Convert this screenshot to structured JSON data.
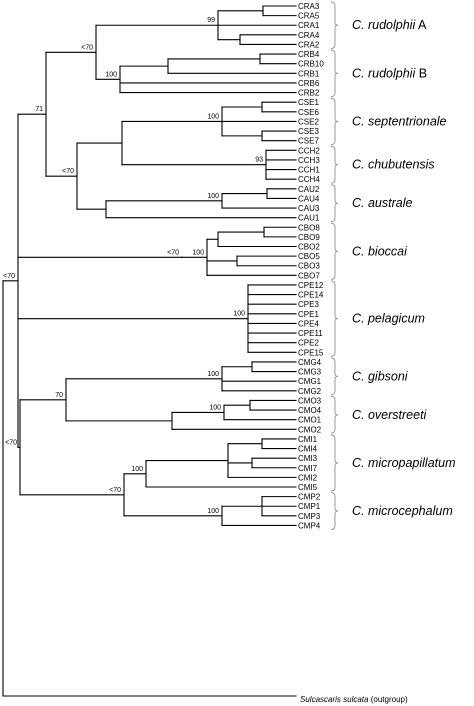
{
  "outgroup": {
    "genus": "Sulcascaris sulcata",
    "note": "(outgroup)"
  },
  "clades": [
    {
      "id": "rudolphiiA",
      "name": "C. rudolphii",
      "suffix": " A",
      "leaves": [
        "CRA3",
        "CRA5",
        "CRA1",
        "CRA4",
        "CRA2"
      ]
    },
    {
      "id": "rudolphiiB",
      "name": "C. rudolphii",
      "suffix": " B",
      "leaves": [
        "CRB4",
        "CRB10",
        "CRB1",
        "CRB6",
        "CRB2"
      ]
    },
    {
      "id": "septentrionale",
      "name": "C. septentrionale",
      "suffix": "",
      "leaves": [
        "CSE1",
        "CSE6",
        "CSE2",
        "CSE3",
        "CSE7"
      ]
    },
    {
      "id": "chubutensis",
      "name": "C. chubutensis",
      "suffix": "",
      "leaves": [
        "CCH2",
        "CCH3",
        "CCH1",
        "CCH4"
      ]
    },
    {
      "id": "australe",
      "name": "C. australe",
      "suffix": "",
      "leaves": [
        "CAU2",
        "CAU4",
        "CAU3",
        "CAU1"
      ]
    },
    {
      "id": "bioccai",
      "name": "C. bioccai",
      "suffix": "",
      "leaves": [
        "CBO8",
        "CBO9",
        "CBO2",
        "CBO5",
        "CBO3",
        "CBO7"
      ]
    },
    {
      "id": "pelagicum",
      "name": "C. pelagicum",
      "suffix": "",
      "leaves": [
        "CPE12",
        "CPE14",
        "CPE3",
        "CPE1",
        "CPE4",
        "CPE11",
        "CPE2",
        "CPE15"
      ]
    },
    {
      "id": "gibsoni",
      "name": "C. gibsoni",
      "suffix": "",
      "leaves": [
        "CMG4",
        "CMG3",
        "CMG1",
        "CMG2"
      ]
    },
    {
      "id": "overstreeti",
      "name": "C. overstreeti",
      "suffix": "",
      "leaves": [
        "CMO3",
        "CMO4",
        "CMO1",
        "CMO2"
      ]
    },
    {
      "id": "micropapillatum",
      "name": "C. micropapillatum",
      "suffix": "",
      "leaves": [
        "CMI1",
        "CMI4",
        "CMI3",
        "CMI7",
        "CMI2",
        "CMI5"
      ]
    },
    {
      "id": "microcephalum",
      "name": "C. microcephalum",
      "suffix": "",
      "leaves": [
        "CMP2",
        "CMP1",
        "CMP3",
        "CMP4"
      ]
    }
  ],
  "support_values": [
    "99",
    "100",
    "<70",
    "71",
    "100",
    "93",
    "<70",
    "100",
    "100",
    "<70",
    "100",
    "<70",
    "100",
    "70",
    "100",
    "<70",
    "100",
    "100",
    "<70"
  ]
}
